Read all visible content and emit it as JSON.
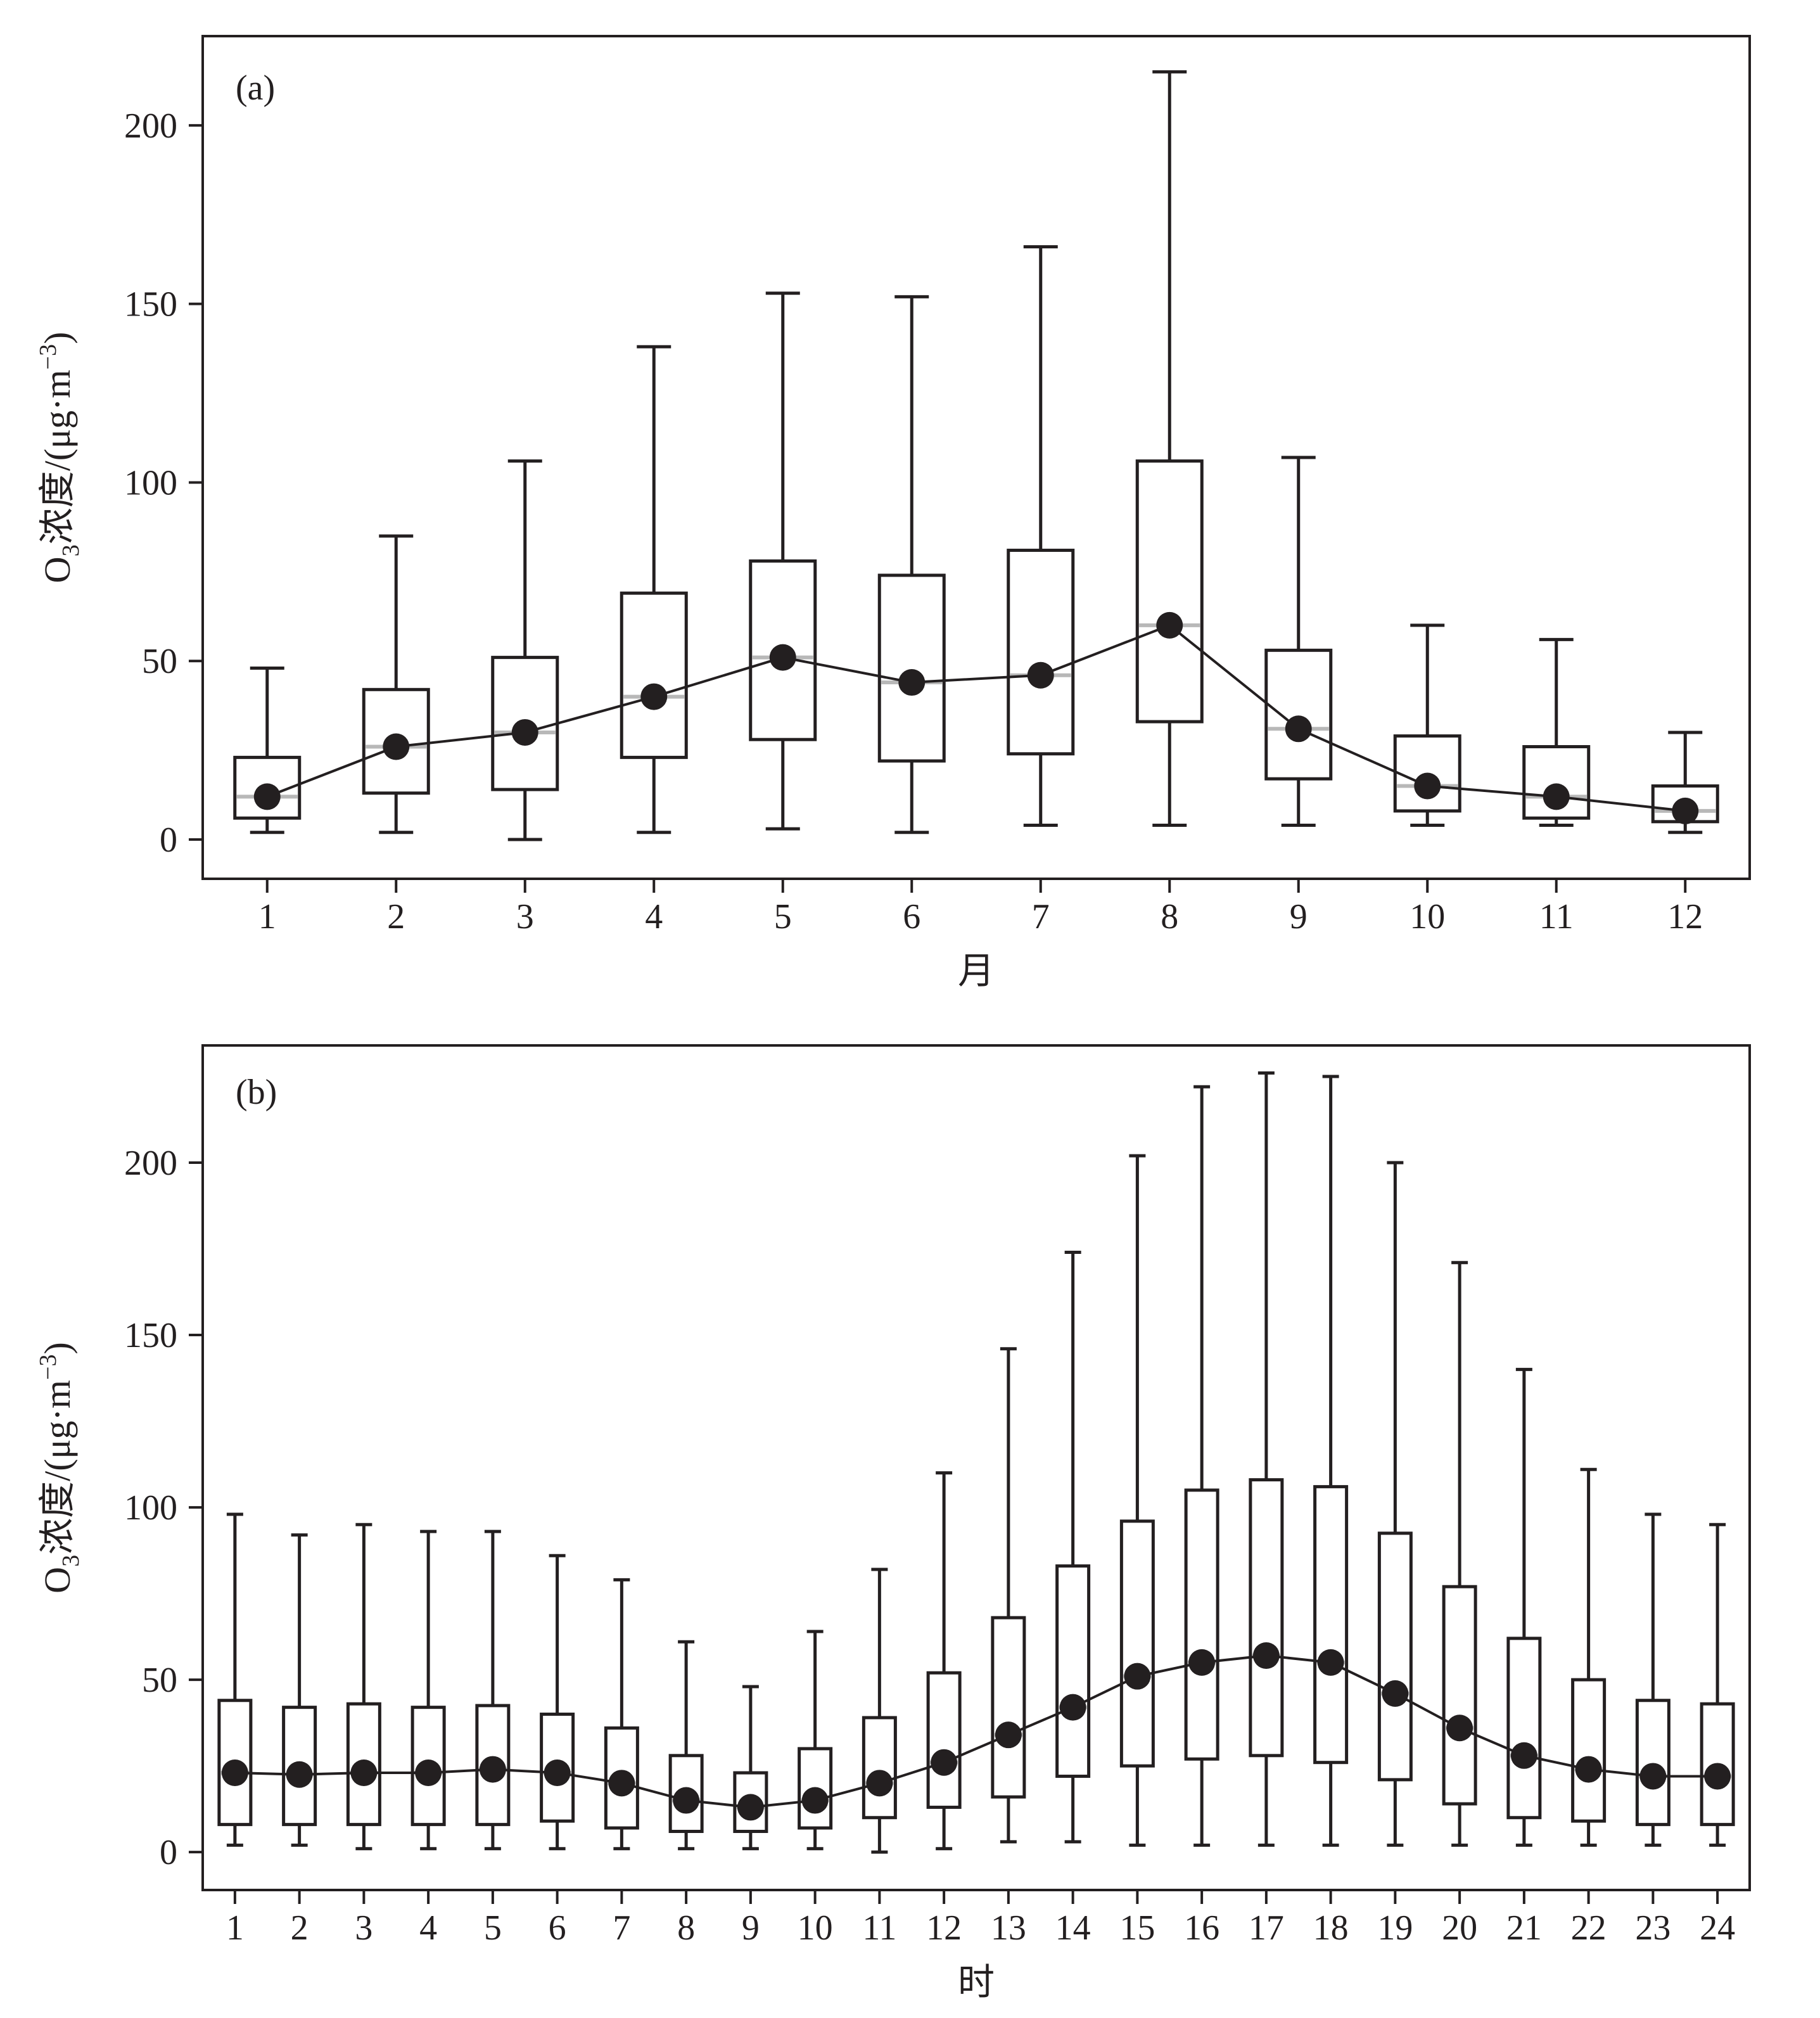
{
  "chart_data": [
    {
      "type": "box",
      "panel_label": "(a)",
      "xlabel": "月",
      "ylabel": "O3浓度/(μg·m-3)",
      "ylabel_parts": {
        "o": "O",
        "sub": "3",
        "mid": "浓度/(μg·m",
        "sup": "−3",
        "close": ")"
      },
      "ylim": [
        -11,
        225
      ],
      "yticks": [
        0,
        50,
        100,
        150,
        200
      ],
      "categories": [
        "1",
        "2",
        "3",
        "4",
        "5",
        "6",
        "7",
        "8",
        "9",
        "10",
        "11",
        "12"
      ],
      "whisker_min": [
        2,
        2,
        0,
        2,
        3,
        2,
        4,
        4,
        4,
        4,
        4,
        2
      ],
      "q1": [
        6,
        13,
        14,
        23,
        28,
        22,
        24,
        33,
        17,
        8,
        6,
        5
      ],
      "median": [
        12,
        26,
        30,
        40,
        51,
        44,
        46,
        60,
        31,
        15,
        12,
        8
      ],
      "q3": [
        23,
        42,
        51,
        69,
        78,
        74,
        81,
        106,
        53,
        29,
        26,
        15
      ],
      "whisker_max": [
        48,
        85,
        106,
        138,
        153,
        152,
        166,
        215,
        107,
        60,
        56,
        30
      ],
      "mean": [
        12,
        26,
        30,
        40,
        51,
        44,
        46,
        60,
        31,
        15,
        12,
        8
      ]
    },
    {
      "type": "box",
      "panel_label": "(b)",
      "xlabel": "时",
      "ylabel": "O3浓度/(μg·m-3)",
      "ylabel_parts": {
        "o": "O",
        "sub": "3",
        "mid": "浓度/(μg·m",
        "sup": "−3",
        "close": ")"
      },
      "ylim": [
        -11,
        234
      ],
      "yticks": [
        0,
        50,
        100,
        150,
        200
      ],
      "categories": [
        "1",
        "2",
        "3",
        "4",
        "5",
        "6",
        "7",
        "8",
        "9",
        "10",
        "11",
        "12",
        "13",
        "14",
        "15",
        "16",
        "17",
        "18",
        "19",
        "20",
        "21",
        "22",
        "23",
        "24"
      ],
      "whisker_min": [
        2,
        2,
        1,
        1,
        1,
        1,
        1,
        1,
        1,
        1,
        0,
        1,
        3,
        3,
        2,
        2,
        2,
        2,
        2,
        2,
        2,
        2,
        2,
        2
      ],
      "q1": [
        8,
        8,
        8,
        8,
        8,
        9,
        7,
        6,
        6,
        7,
        10,
        13,
        16,
        22,
        25,
        27,
        28,
        26,
        21,
        14,
        10,
        9,
        8,
        8
      ],
      "median": [
        23,
        22.5,
        23,
        23,
        24,
        23,
        20,
        15,
        13,
        15,
        20,
        26,
        34,
        42,
        51,
        55,
        57,
        55,
        46,
        36,
        28,
        24,
        22,
        22
      ],
      "q3": [
        44,
        42,
        43,
        42,
        42.5,
        40,
        36,
        28,
        23,
        30,
        39,
        52,
        68,
        83,
        96,
        105,
        108,
        106,
        92.5,
        77,
        62,
        50,
        44,
        43
      ],
      "whisker_max": [
        98,
        92,
        95,
        93,
        93,
        86,
        79,
        61,
        48,
        64,
        82,
        110,
        146,
        174,
        202,
        222,
        226,
        225,
        200,
        171,
        140,
        111,
        98,
        95
      ],
      "mean": [
        23,
        22.5,
        23,
        23,
        24,
        23,
        20,
        15,
        13,
        15,
        20,
        26,
        34,
        42,
        51,
        55,
        57,
        55,
        46,
        36,
        28,
        24,
        22,
        22
      ]
    }
  ]
}
